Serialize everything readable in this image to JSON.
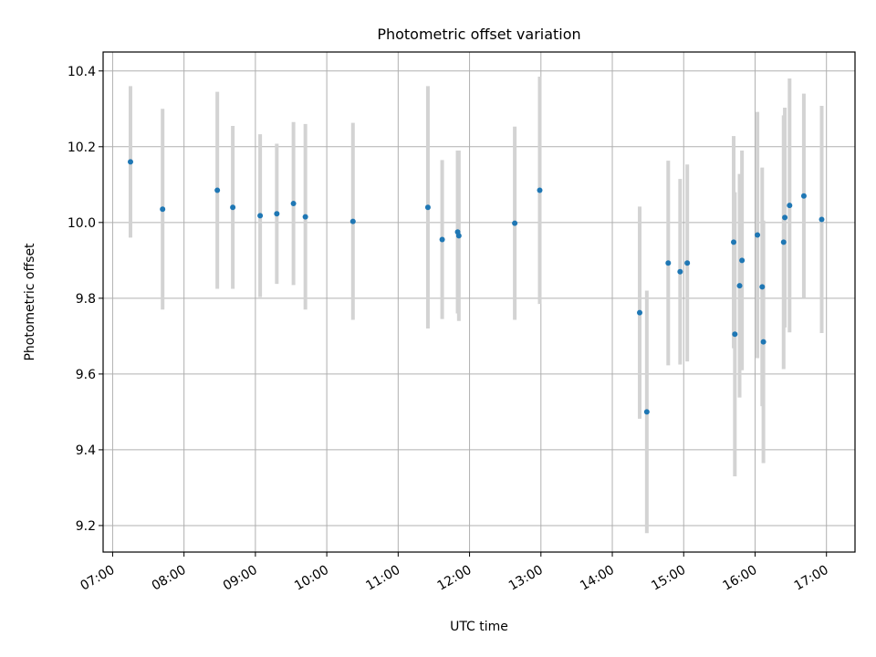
{
  "chart_data": {
    "type": "scatter",
    "title": "Photometric offset variation",
    "xlabel": "UTC time",
    "ylabel": "Photometric offset",
    "xlim": [
      "06:52",
      "17:24"
    ],
    "ylim": [
      9.13,
      10.45
    ],
    "x_ticks": [
      "07:00",
      "08:00",
      "09:00",
      "10:00",
      "11:00",
      "12:00",
      "13:00",
      "14:00",
      "15:00",
      "16:00",
      "17:00"
    ],
    "y_ticks": [
      "9.2",
      "9.4",
      "9.6",
      "9.8",
      "10.0",
      "10.2",
      "10.4"
    ],
    "grid": true,
    "colors": {
      "marker": "#1f77b4",
      "errorbar": "#d3d3d3",
      "grid": "#b0b0b0"
    },
    "series": [
      {
        "points": [
          {
            "t": "07:15",
            "y": 10.16,
            "err": 0.2
          },
          {
            "t": "07:42",
            "y": 10.035,
            "err": 0.265
          },
          {
            "t": "08:28",
            "y": 10.085,
            "err": 0.26
          },
          {
            "t": "08:41",
            "y": 10.04,
            "err": 0.215
          },
          {
            "t": "09:04",
            "y": 10.018,
            "err": 0.215
          },
          {
            "t": "09:18",
            "y": 10.023,
            "err": 0.185
          },
          {
            "t": "09:32",
            "y": 10.05,
            "err": 0.215
          },
          {
            "t": "09:42",
            "y": 10.015,
            "err": 0.245
          },
          {
            "t": "10:22",
            "y": 10.003,
            "err": 0.26
          },
          {
            "t": "11:25",
            "y": 10.04,
            "err": 0.32
          },
          {
            "t": "11:37",
            "y": 9.955,
            "err": 0.21
          },
          {
            "t": "11:50",
            "y": 9.975,
            "err": 0.215
          },
          {
            "t": "11:51",
            "y": 9.965,
            "err": 0.225
          },
          {
            "t": "12:38",
            "y": 9.998,
            "err": 0.255
          },
          {
            "t": "12:59",
            "y": 10.085,
            "err": 0.3
          },
          {
            "t": "14:23",
            "y": 9.762,
            "err": 0.28
          },
          {
            "t": "14:29",
            "y": 9.5,
            "err": 0.32
          },
          {
            "t": "14:47",
            "y": 9.893,
            "err": 0.27
          },
          {
            "t": "14:57",
            "y": 9.87,
            "err": 0.245
          },
          {
            "t": "15:03",
            "y": 9.893,
            "err": 0.26
          },
          {
            "t": "15:42",
            "y": 9.948,
            "err": 0.28
          },
          {
            "t": "15:43",
            "y": 9.705,
            "err": 0.375
          },
          {
            "t": "15:47",
            "y": 9.833,
            "err": 0.295
          },
          {
            "t": "15:49",
            "y": 9.9,
            "err": 0.29
          },
          {
            "t": "16:02",
            "y": 9.967,
            "err": 0.325
          },
          {
            "t": "16:06",
            "y": 9.83,
            "err": 0.315
          },
          {
            "t": "16:07",
            "y": 9.685,
            "err": 0.32
          },
          {
            "t": "16:24",
            "y": 9.948,
            "err": 0.335
          },
          {
            "t": "16:25",
            "y": 10.013,
            "err": 0.29
          },
          {
            "t": "16:29",
            "y": 10.045,
            "err": 0.335
          },
          {
            "t": "16:41",
            "y": 10.07,
            "err": 0.27
          },
          {
            "t": "16:56",
            "y": 10.008,
            "err": 0.3
          }
        ]
      }
    ]
  }
}
